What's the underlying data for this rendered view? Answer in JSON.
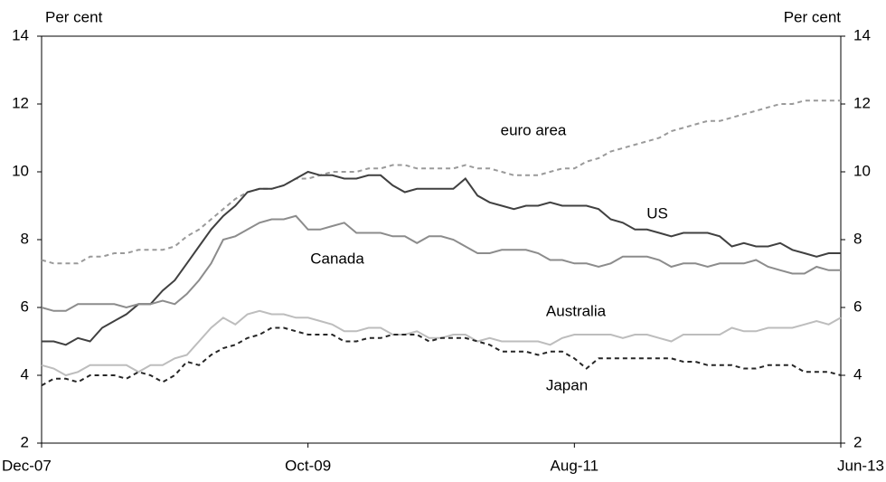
{
  "chart_data": {
    "type": "line",
    "y_label": "Per cent",
    "y2_label": "Per cent",
    "categories": [
      "Dec-07",
      null,
      null,
      null,
      null,
      null,
      null,
      null,
      null,
      null,
      null,
      null,
      null,
      null,
      null,
      null,
      null,
      null,
      null,
      null,
      null,
      null,
      "Oct-09",
      null,
      null,
      null,
      null,
      null,
      null,
      null,
      null,
      null,
      null,
      null,
      null,
      null,
      null,
      null,
      null,
      null,
      null,
      null,
      null,
      null,
      "Aug-11",
      null,
      null,
      null,
      null,
      null,
      null,
      null,
      null,
      null,
      null,
      null,
      null,
      null,
      null,
      null,
      null,
      null,
      null,
      null,
      null,
      null,
      "Jun-13"
    ],
    "ylim": [
      2,
      14
    ],
    "yticks": [
      2,
      4,
      6,
      8,
      10,
      12,
      14
    ],
    "y2lim": [
      2,
      14
    ],
    "y2ticks": [
      2,
      4,
      6,
      8,
      10,
      12,
      14
    ],
    "series": [
      {
        "name": "euro area",
        "color": "#9a9a9a",
        "dashed": true,
        "values": [
          7.4,
          7.3,
          7.3,
          7.3,
          7.5,
          7.5,
          7.6,
          7.6,
          7.7,
          7.7,
          7.7,
          7.8,
          8.1,
          8.3,
          8.6,
          8.9,
          9.2,
          9.4,
          9.5,
          9.5,
          9.6,
          9.8,
          9.8,
          9.9,
          10.0,
          10.0,
          10.0,
          10.1,
          10.1,
          10.2,
          10.2,
          10.1,
          10.1,
          10.1,
          10.1,
          10.2,
          10.1,
          10.1,
          10.0,
          9.9,
          9.9,
          9.9,
          10.0,
          10.1,
          10.1,
          10.3,
          10.4,
          10.6,
          10.7,
          10.8,
          10.9,
          11.0,
          11.2,
          11.3,
          11.4,
          11.5,
          11.5,
          11.6,
          11.7,
          11.8,
          11.9,
          12.0,
          12.0,
          12.1,
          12.1,
          12.1,
          12.1
        ]
      },
      {
        "name": "US",
        "color": "#404040",
        "dashed": false,
        "values": [
          5.0,
          5.0,
          4.9,
          5.1,
          5.0,
          5.4,
          5.6,
          5.8,
          6.1,
          6.1,
          6.5,
          6.8,
          7.3,
          7.8,
          8.3,
          8.7,
          9.0,
          9.4,
          9.5,
          9.5,
          9.6,
          9.8,
          10.0,
          9.9,
          9.9,
          9.8,
          9.8,
          9.9,
          9.9,
          9.6,
          9.4,
          9.5,
          9.5,
          9.5,
          9.5,
          9.8,
          9.3,
          9.1,
          9.0,
          8.9,
          9.0,
          9.0,
          9.1,
          9.0,
          9.0,
          9.0,
          8.9,
          8.6,
          8.5,
          8.3,
          8.3,
          8.2,
          8.1,
          8.2,
          8.2,
          8.2,
          8.1,
          7.8,
          7.9,
          7.8,
          7.8,
          7.9,
          7.7,
          7.6,
          7.5,
          7.6,
          7.6
        ]
      },
      {
        "name": "Canada",
        "color": "#8c8c8c",
        "dashed": false,
        "values": [
          6.0,
          5.9,
          5.9,
          6.1,
          6.1,
          6.1,
          6.1,
          6.0,
          6.1,
          6.1,
          6.2,
          6.1,
          6.4,
          6.8,
          7.3,
          8.0,
          8.1,
          8.3,
          8.5,
          8.6,
          8.6,
          8.7,
          8.3,
          8.3,
          8.4,
          8.5,
          8.2,
          8.2,
          8.2,
          8.1,
          8.1,
          7.9,
          8.1,
          8.1,
          8.0,
          7.8,
          7.6,
          7.6,
          7.7,
          7.7,
          7.7,
          7.6,
          7.4,
          7.4,
          7.3,
          7.3,
          7.2,
          7.3,
          7.5,
          7.5,
          7.5,
          7.4,
          7.2,
          7.3,
          7.3,
          7.2,
          7.3,
          7.3,
          7.3,
          7.4,
          7.2,
          7.1,
          7.0,
          7.0,
          7.2,
          7.1,
          7.1
        ]
      },
      {
        "name": "Australia",
        "color": "#bdbdbd",
        "dashed": false,
        "values": [
          4.3,
          4.2,
          4.0,
          4.1,
          4.3,
          4.3,
          4.3,
          4.3,
          4.1,
          4.3,
          4.3,
          4.5,
          4.6,
          5.0,
          5.4,
          5.7,
          5.5,
          5.8,
          5.9,
          5.8,
          5.8,
          5.7,
          5.7,
          5.6,
          5.5,
          5.3,
          5.3,
          5.4,
          5.4,
          5.2,
          5.2,
          5.3,
          5.1,
          5.1,
          5.2,
          5.2,
          5.0,
          5.1,
          5.0,
          5.0,
          5.0,
          5.0,
          4.9,
          5.1,
          5.2,
          5.2,
          5.2,
          5.2,
          5.1,
          5.2,
          5.2,
          5.1,
          5.0,
          5.2,
          5.2,
          5.2,
          5.2,
          5.4,
          5.3,
          5.3,
          5.4,
          5.4,
          5.4,
          5.5,
          5.6,
          5.5,
          5.7
        ]
      },
      {
        "name": "Japan",
        "color": "#262626",
        "dashed": true,
        "values": [
          3.7,
          3.9,
          3.9,
          3.8,
          4.0,
          4.0,
          4.0,
          3.9,
          4.1,
          4.0,
          3.8,
          4.0,
          4.4,
          4.3,
          4.6,
          4.8,
          4.9,
          5.1,
          5.2,
          5.4,
          5.4,
          5.3,
          5.2,
          5.2,
          5.2,
          5.0,
          5.0,
          5.1,
          5.1,
          5.2,
          5.2,
          5.2,
          5.0,
          5.1,
          5.1,
          5.1,
          5.0,
          4.9,
          4.7,
          4.7,
          4.7,
          4.6,
          4.7,
          4.7,
          4.5,
          4.2,
          4.5,
          4.5,
          4.5,
          4.5,
          4.5,
          4.5,
          4.5,
          4.4,
          4.4,
          4.3,
          4.3,
          4.3,
          4.2,
          4.2,
          4.3,
          4.3,
          4.3,
          4.1,
          4.1,
          4.1,
          4.0
        ]
      }
    ]
  }
}
